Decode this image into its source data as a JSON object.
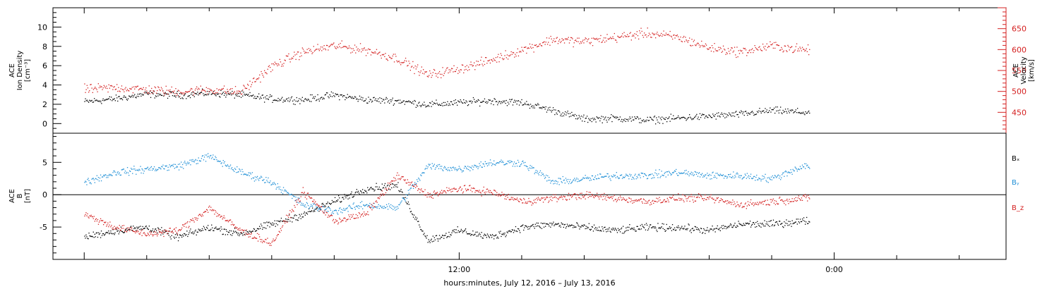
{
  "colors": {
    "black": "#000000",
    "red": "#d42020",
    "blue": "#1f8fd6"
  },
  "chart_data": [
    {
      "type": "scatter",
      "panel": "top",
      "ylabel_left": [
        "ACE",
        "Ion Density",
        "[cm⁻³]"
      ],
      "ylabel_right": [
        "ACE",
        "Velocity",
        "[km/s]"
      ],
      "ylim_left": [
        -1,
        12
      ],
      "ylim_right": [
        400,
        700
      ],
      "yticks_left": [
        "0",
        "2",
        "4",
        "6",
        "8",
        "10"
      ],
      "yticks_right": [
        "450",
        "500",
        "550",
        "600",
        "650"
      ],
      "x_range_hours": [
        -1,
        29.5
      ],
      "data_end_hours": 23.2,
      "series": [
        {
          "name": "Ion Density",
          "color": "#000000",
          "axis": "left",
          "x": [
            0,
            1,
            2,
            3,
            4,
            5,
            6,
            7,
            8,
            9,
            10,
            11,
            12,
            13,
            14,
            15,
            16,
            17,
            18,
            19,
            20,
            21,
            22,
            23
          ],
          "y": [
            2.3,
            2.6,
            3.1,
            3.0,
            3.2,
            3.0,
            2.6,
            2.5,
            3.0,
            2.5,
            2.4,
            2.0,
            2.2,
            2.4,
            2.2,
            1.4,
            0.5,
            0.6,
            0.4,
            0.6,
            0.8,
            1.0,
            1.4,
            1.2
          ]
        },
        {
          "name": "Velocity",
          "color": "#d42020",
          "axis": "right",
          "x": [
            0,
            1,
            2,
            3,
            4,
            5,
            6,
            7,
            8,
            9,
            10,
            11,
            12,
            13,
            14,
            15,
            16,
            17,
            18,
            19,
            20,
            21,
            22,
            23
          ],
          "y": [
            505,
            510,
            505,
            500,
            505,
            500,
            560,
            595,
            610,
            600,
            580,
            540,
            555,
            575,
            600,
            625,
            620,
            630,
            640,
            630,
            605,
            595,
            610,
            600
          ]
        }
      ]
    },
    {
      "type": "scatter",
      "panel": "bottom",
      "ylabel_left": [
        "ACE",
        "B",
        "[nT]"
      ],
      "ylim": [
        -10,
        9.5
      ],
      "yticks": [
        "-5",
        "0",
        "5"
      ],
      "zero_line": true,
      "x_range_hours": [
        -1,
        29.5
      ],
      "data_end_hours": 23.2,
      "xticks": [
        "12:00",
        "0:00"
      ],
      "xtick_hours": [
        12,
        24
      ],
      "xlabel": "hours:minutes, July 12, 2016 – July 13, 2016",
      "legend": [
        "Bₓ",
        "Bᵧ",
        "B_z"
      ],
      "legend_placement": "right",
      "series": [
        {
          "name": "Bx",
          "color": "#000000",
          "x": [
            0,
            1,
            2,
            3,
            4,
            5,
            6,
            7,
            8,
            9,
            10,
            11,
            12,
            13,
            14,
            15,
            16,
            17,
            18,
            19,
            20,
            21,
            22,
            23
          ],
          "y": [
            -6.5,
            -5.5,
            -5.0,
            -6.5,
            -5.0,
            -6.0,
            -4.5,
            -3.0,
            -1.0,
            1.0,
            1.5,
            -7.0,
            -5.5,
            -6.5,
            -5.0,
            -4.5,
            -5.0,
            -5.5,
            -5.0,
            -5.0,
            -5.5,
            -4.5,
            -4.5,
            -4.0
          ]
        },
        {
          "name": "By",
          "color": "#1f8fd6",
          "x": [
            0,
            1,
            2,
            3,
            4,
            5,
            6,
            7,
            8,
            9,
            10,
            11,
            12,
            13,
            14,
            15,
            16,
            17,
            18,
            19,
            20,
            21,
            22,
            23
          ],
          "y": [
            2.0,
            3.5,
            4.0,
            4.5,
            6.0,
            3.5,
            2.0,
            -1.5,
            -2.5,
            -1.5,
            -2.0,
            4.5,
            4.0,
            5.0,
            5.0,
            2.0,
            2.5,
            3.0,
            3.0,
            3.5,
            3.0,
            3.0,
            2.5,
            4.5
          ]
        },
        {
          "name": "Bz",
          "color": "#d42020",
          "x": [
            0,
            1,
            2,
            3,
            4,
            5,
            6,
            7,
            8,
            9,
            10,
            11,
            12,
            13,
            14,
            15,
            16,
            17,
            18,
            19,
            20,
            21,
            22,
            23
          ],
          "y": [
            -3.0,
            -5.0,
            -6.0,
            -5.5,
            -2.0,
            -5.5,
            -7.5,
            0.5,
            -4.0,
            -3.0,
            3.0,
            0.0,
            1.0,
            0.5,
            -1.0,
            -0.5,
            0.0,
            -0.5,
            -1.0,
            -0.5,
            -0.5,
            -1.5,
            -1.0,
            -0.5
          ]
        }
      ]
    }
  ]
}
